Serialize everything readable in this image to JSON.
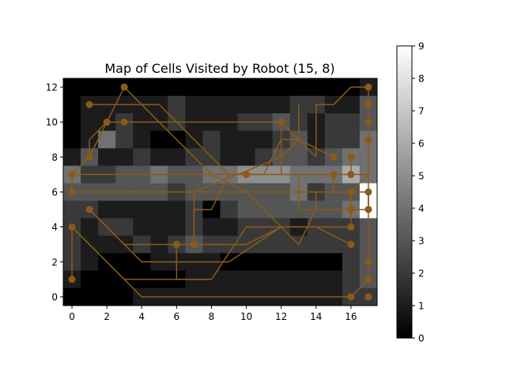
{
  "chart_data": {
    "type": "heatmap",
    "title": "Map of Cells Visited by Robot (15, 8)",
    "xlabel": "",
    "ylabel": "",
    "x_ticks": [
      "0",
      "2",
      "4",
      "6",
      "8",
      "10",
      "12",
      "14",
      "16"
    ],
    "y_ticks": [
      "0",
      "2",
      "4",
      "6",
      "8",
      "10",
      "12"
    ],
    "xlim": [
      -0.5,
      17.5
    ],
    "ylim": [
      -0.5,
      12.5
    ],
    "colorbar": {
      "min": 0,
      "max": 9,
      "ticks": [
        "0",
        "1",
        "2",
        "3",
        "4",
        "5",
        "6",
        "7",
        "8",
        "9"
      ],
      "colormap": "gray"
    },
    "grid_rows_top_to_bottom": [
      [
        0,
        0,
        0,
        0,
        0,
        0,
        0,
        0,
        0,
        0,
        0,
        0,
        0,
        0,
        0,
        0,
        0,
        1
      ],
      [
        0,
        1,
        1,
        1,
        1,
        1,
        2,
        1,
        1,
        1,
        1,
        1,
        1,
        2,
        2,
        1,
        1,
        3
      ],
      [
        0,
        1,
        1,
        2,
        1,
        1,
        2,
        1,
        1,
        1,
        2,
        2,
        3,
        2,
        1,
        2,
        2,
        3
      ],
      [
        0,
        1,
        4,
        2,
        1,
        0,
        0,
        1,
        2,
        1,
        1,
        1,
        2,
        3,
        1,
        2,
        2,
        4
      ],
      [
        1,
        3,
        1,
        1,
        2,
        1,
        1,
        2,
        2,
        1,
        1,
        2,
        3,
        3,
        2,
        3,
        4,
        4
      ],
      [
        4,
        2,
        2,
        3,
        3,
        4,
        3,
        3,
        4,
        4,
        5,
        5,
        5,
        4,
        4,
        4,
        6,
        4
      ],
      [
        3,
        3,
        3,
        3,
        3,
        3,
        2,
        3,
        3,
        3,
        3,
        3,
        3,
        4,
        2,
        3,
        3,
        9
      ],
      [
        2,
        2,
        1,
        1,
        1,
        1,
        1,
        2,
        0,
        2,
        3,
        3,
        3,
        3,
        3,
        3,
        4,
        9
      ],
      [
        2,
        1,
        2,
        2,
        1,
        1,
        1,
        2,
        1,
        1,
        2,
        2,
        2,
        1,
        2,
        2,
        2,
        3
      ],
      [
        2,
        1,
        1,
        1,
        2,
        1,
        2,
        3,
        2,
        2,
        2,
        2,
        2,
        2,
        2,
        2,
        2,
        3
      ],
      [
        2,
        1,
        0,
        0,
        0,
        1,
        1,
        1,
        1,
        0,
        0,
        0,
        0,
        0,
        0,
        0,
        2,
        3
      ],
      [
        1,
        0,
        0,
        0,
        0,
        0,
        0,
        1,
        1,
        1,
        1,
        1,
        1,
        1,
        1,
        1,
        2,
        3
      ],
      [
        0,
        0,
        0,
        0,
        1,
        1,
        1,
        1,
        1,
        1,
        1,
        1,
        1,
        1,
        1,
        1,
        2,
        2
      ]
    ],
    "path_color": "#8B5A1B",
    "paths": [
      [
        [
          0,
          1
        ],
        [
          0,
          4
        ],
        [
          4,
          0
        ],
        [
          16,
          0
        ]
      ],
      [
        [
          0,
          4
        ],
        [
          3,
          1
        ],
        [
          8,
          1
        ]
      ],
      [
        [
          1,
          5
        ],
        [
          3,
          3
        ],
        [
          5,
          3
        ],
        [
          6,
          3
        ]
      ],
      [
        [
          0,
          6
        ],
        [
          0,
          7
        ],
        [
          13,
          7
        ],
        [
          13,
          5
        ],
        [
          14,
          5
        ],
        [
          14,
          6
        ],
        [
          17,
          6
        ],
        [
          17,
          5
        ]
      ],
      [
        [
          0,
          6
        ],
        [
          15,
          6
        ],
        [
          15,
          7
        ],
        [
          16,
          7
        ],
        [
          16,
          8
        ]
      ],
      [
        [
          0,
          7
        ],
        [
          1,
          8
        ],
        [
          2,
          10
        ],
        [
          3,
          12
        ],
        [
          8,
          7
        ],
        [
          10,
          6
        ],
        [
          12,
          4
        ],
        [
          14,
          4
        ],
        [
          16,
          3
        ]
      ],
      [
        [
          1,
          8
        ],
        [
          1,
          9
        ],
        [
          2,
          10
        ],
        [
          3,
          10
        ],
        [
          12,
          10
        ],
        [
          12,
          7
        ]
      ],
      [
        [
          1,
          11
        ],
        [
          5,
          11
        ],
        [
          9,
          7
        ],
        [
          17,
          7
        ],
        [
          17,
          9
        ]
      ],
      [
        [
          1,
          5
        ],
        [
          4,
          2
        ],
        [
          9,
          2
        ],
        [
          12,
          4
        ],
        [
          13,
          3
        ],
        [
          14,
          5
        ],
        [
          16,
          5
        ]
      ],
      [
        [
          6,
          3
        ],
        [
          6,
          1
        ],
        [
          8,
          1
        ],
        [
          10,
          4
        ],
        [
          15,
          4
        ]
      ],
      [
        [
          6,
          3
        ],
        [
          7,
          3
        ],
        [
          7,
          5
        ],
        [
          8,
          5
        ],
        [
          9,
          7
        ],
        [
          11,
          7
        ],
        [
          12,
          9
        ],
        [
          13,
          9
        ],
        [
          13,
          11
        ]
      ],
      [
        [
          16,
          0
        ],
        [
          17,
          1
        ],
        [
          17,
          2
        ],
        [
          17,
          4
        ],
        [
          17,
          9
        ],
        [
          17,
          10
        ],
        [
          17,
          11
        ],
        [
          17,
          12
        ]
      ],
      [
        [
          7,
          3
        ],
        [
          10,
          3
        ],
        [
          12,
          4
        ],
        [
          16,
          4
        ]
      ],
      [
        [
          12,
          10
        ],
        [
          14,
          8
        ],
        [
          14,
          11
        ],
        [
          15,
          11
        ],
        [
          16,
          12
        ],
        [
          17,
          12
        ]
      ],
      [
        [
          16,
          6
        ],
        [
          16,
          5
        ],
        [
          17,
          5
        ],
        [
          17,
          6
        ],
        [
          16,
          6
        ]
      ],
      [
        [
          16,
          4
        ],
        [
          16,
          6
        ],
        [
          17,
          7
        ]
      ],
      [
        [
          7,
          3
        ],
        [
          7,
          6
        ],
        [
          12,
          8
        ],
        [
          13,
          9
        ],
        [
          15,
          8
        ]
      ]
    ],
    "points": [
      [
        0,
        1
      ],
      [
        0,
        4
      ],
      [
        0,
        6
      ],
      [
        0,
        7
      ],
      [
        1,
        5
      ],
      [
        1,
        8
      ],
      [
        1,
        11
      ],
      [
        2,
        10
      ],
      [
        3,
        10
      ],
      [
        3,
        12
      ],
      [
        6,
        3
      ],
      [
        7,
        3
      ],
      [
        10,
        7
      ],
      [
        12,
        10
      ],
      [
        15,
        7
      ],
      [
        15,
        8
      ],
      [
        16,
        0
      ],
      [
        16,
        3
      ],
      [
        16,
        4
      ],
      [
        16,
        5
      ],
      [
        16,
        6
      ],
      [
        16,
        7
      ],
      [
        16,
        8
      ],
      [
        17,
        0
      ],
      [
        17,
        1
      ],
      [
        17,
        2
      ],
      [
        17,
        5
      ],
      [
        17,
        6
      ],
      [
        17,
        9
      ],
      [
        17,
        10
      ],
      [
        17,
        11
      ],
      [
        17,
        12
      ]
    ]
  }
}
